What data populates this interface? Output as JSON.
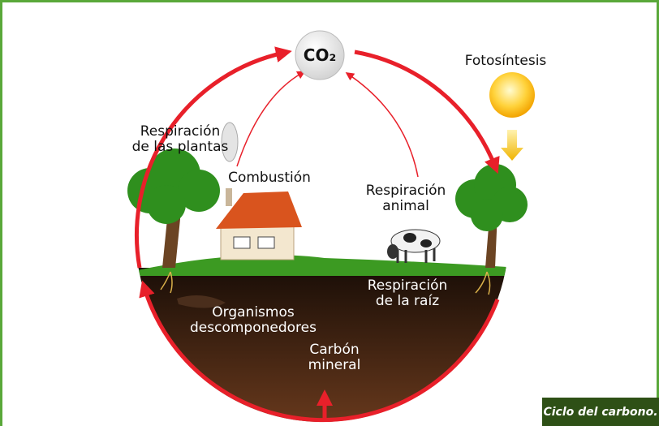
{
  "co2": "CO₂",
  "labels": {
    "fotosintesis": [
      "Fotosíntesis"
    ],
    "respiracion_plantas": [
      "Respiración",
      "de las plantas"
    ],
    "combustion": [
      "Combustión"
    ],
    "respiracion_animal": [
      "Respiración",
      "animal"
    ],
    "respiracion_raiz": [
      "Respiración",
      "de la raíz"
    ],
    "organismos": [
      "Organismos",
      "descomponedores"
    ],
    "carbon": [
      "Carbón",
      "mineral"
    ]
  },
  "caption": "Ciclo del carbono."
}
